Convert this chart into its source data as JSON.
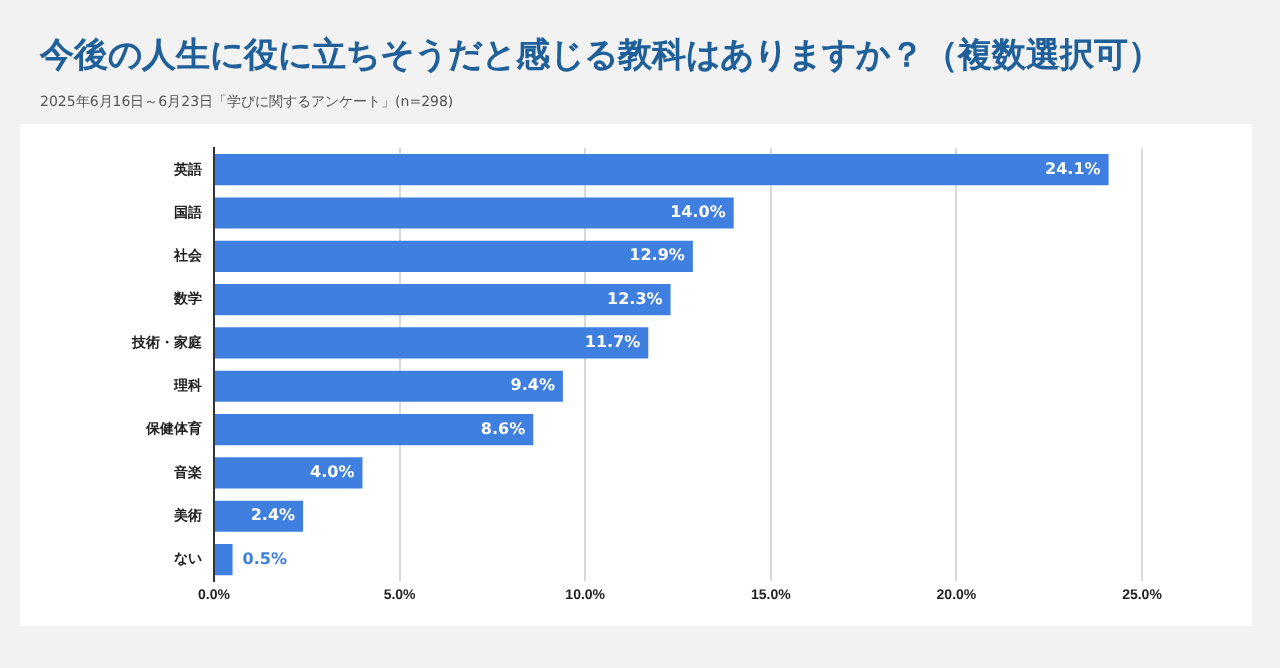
{
  "chart_data": {
    "type": "bar",
    "orientation": "horizontal",
    "title": "今後の人生に役に立ちそうだと感じる教科はありますか？（複数選択可）",
    "subtitle": "2025年6月16日～6月23日「学びに関するアンケート」(n=298)",
    "categories": [
      "英語",
      "国語",
      "社会",
      "数学",
      "技術・家庭",
      "理科",
      "保健体育",
      "音楽",
      "美術",
      "ない"
    ],
    "values": [
      24.1,
      14.0,
      12.9,
      12.3,
      11.7,
      9.4,
      8.6,
      4.0,
      2.4,
      0.5
    ],
    "value_labels": [
      "24.1%",
      "14.0%",
      "12.9%",
      "12.3%",
      "11.7%",
      "9.4%",
      "8.6%",
      "4.0%",
      "2.4%",
      "0.5%"
    ],
    "color": "#3f7fe0",
    "xlim": [
      0,
      25
    ],
    "xticks": [
      {
        "value": 0,
        "label": "0.0%"
      },
      {
        "value": 5,
        "label": "5.0%"
      },
      {
        "value": 10,
        "label": "10.0%"
      },
      {
        "value": 15,
        "label": "15.0%"
      },
      {
        "value": 20,
        "label": "20.0%"
      },
      {
        "value": 25,
        "label": "25.0%"
      }
    ],
    "grid": "x",
    "legend": false
  }
}
